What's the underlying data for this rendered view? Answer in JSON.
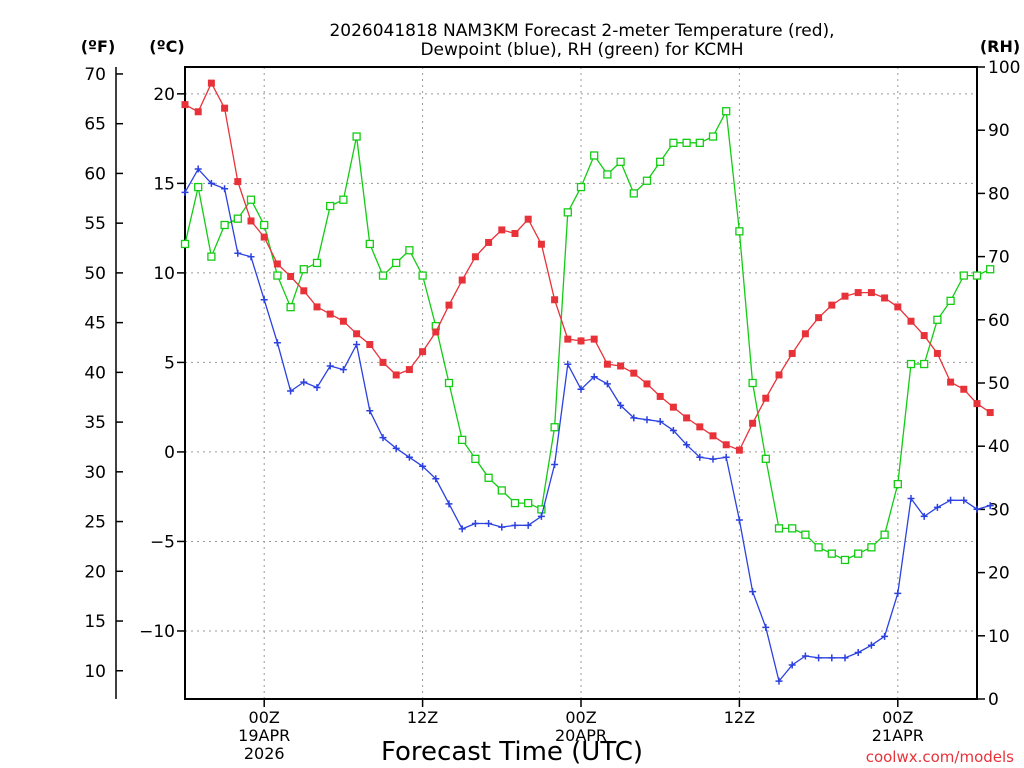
{
  "chart_data": {
    "type": "line",
    "title_line1": "2026041818 NAM3KM Forecast 2-meter Temperature (red),",
    "title_line2": "Dewpoint (blue), RH (green) for KCMH",
    "xlabel": "Forecast Time (UTC)",
    "credit": "coolwx.com/models",
    "axis_units": {
      "fahrenheit": "(ºF)",
      "celsius": "(ºC)",
      "rh": "(RH)"
    },
    "celsius_ticks": [
      "20",
      "15",
      "10",
      "5",
      "0",
      "−5",
      "−10"
    ],
    "celsius_values": [
      20,
      15,
      10,
      5,
      0,
      -5,
      -10
    ],
    "fahrenheit_ticks": [
      "70",
      "65",
      "60",
      "55",
      "50",
      "45",
      "40",
      "35",
      "30",
      "25",
      "20",
      "15",
      "10"
    ],
    "fahrenheit_values": [
      70,
      65,
      60,
      55,
      50,
      45,
      40,
      35,
      30,
      25,
      20,
      15,
      10
    ],
    "rh_ticks": [
      "100",
      "90",
      "80",
      "70",
      "60",
      "50",
      "40",
      "30",
      "20",
      "10",
      "0"
    ],
    "rh_values": [
      100,
      90,
      80,
      70,
      60,
      50,
      40,
      30,
      20,
      10,
      0
    ],
    "ylim_celsius": [
      -13.8,
      21.5
    ],
    "ylim_rh": [
      0,
      100
    ],
    "x_range_hours": [
      0,
      60
    ],
    "x_ticks": [
      {
        "hour": 6,
        "labels": [
          "00Z",
          "19APR",
          "2026"
        ]
      },
      {
        "hour": 18,
        "labels": [
          "12Z"
        ]
      },
      {
        "hour": 30,
        "labels": [
          "00Z",
          "20APR"
        ]
      },
      {
        "hour": 42,
        "labels": [
          "12Z"
        ]
      },
      {
        "hour": 54,
        "labels": [
          "00Z",
          "21APR"
        ]
      }
    ],
    "colors": {
      "temperature": "#e8323a",
      "dewpoint": "#2b41e0",
      "rh": "#13cc13"
    },
    "series": [
      {
        "name": "Temperature",
        "unit": "C",
        "axis": "celsius",
        "values": [
          19.4,
          19.0,
          20.6,
          19.2,
          15.1,
          12.9,
          12.0,
          10.5,
          9.8,
          9.0,
          8.1,
          7.7,
          7.3,
          6.6,
          6.0,
          5.0,
          4.3,
          4.6,
          5.6,
          6.7,
          8.2,
          9.6,
          10.9,
          11.7,
          12.4,
          12.2,
          13.0,
          11.6,
          8.5,
          6.3,
          6.2,
          6.3,
          4.9,
          4.8,
          4.4,
          3.8,
          3.1,
          2.5,
          1.9,
          1.4,
          0.9,
          0.4,
          0.1,
          1.6,
          3.0,
          4.3,
          5.5,
          6.6,
          7.5,
          8.2,
          8.7,
          8.9,
          8.9,
          8.6,
          8.1,
          7.3,
          6.5,
          5.5,
          3.9,
          3.5,
          2.7,
          2.2
        ]
      },
      {
        "name": "Dewpoint",
        "unit": "C",
        "axis": "celsius",
        "values": [
          14.5,
          15.8,
          15.0,
          14.7,
          11.1,
          10.9,
          8.5,
          6.1,
          3.4,
          3.9,
          3.6,
          4.8,
          4.6,
          6.0,
          2.3,
          0.8,
          0.2,
          -0.3,
          -0.8,
          -1.5,
          -2.9,
          -4.3,
          -4.0,
          -4.0,
          -4.2,
          -4.1,
          -4.1,
          -3.6,
          -0.7,
          4.9,
          3.5,
          4.2,
          3.8,
          2.6,
          1.9,
          1.8,
          1.7,
          1.2,
          0.4,
          -0.3,
          -0.4,
          -0.3,
          -3.8,
          -7.8,
          -9.8,
          -12.8,
          -11.9,
          -11.4,
          -11.5,
          -11.5,
          -11.5,
          -11.2,
          -10.8,
          -10.3,
          -7.9,
          -2.6,
          -3.6,
          -3.1,
          -2.7,
          -2.7,
          -3.2,
          -3.0
        ]
      },
      {
        "name": "RH",
        "unit": "%",
        "axis": "rh",
        "values": [
          72,
          81,
          70,
          75,
          76,
          79,
          75,
          67,
          62,
          68,
          69,
          78,
          79,
          89,
          72,
          67,
          69,
          71,
          67,
          59,
          50,
          41,
          38,
          35,
          33,
          31,
          31,
          30,
          43,
          77,
          81,
          86,
          83,
          85,
          80,
          82,
          85,
          88,
          88,
          88,
          89,
          93,
          74,
          50,
          38,
          27,
          27,
          26,
          24,
          23,
          22,
          23,
          24,
          26,
          34,
          53,
          53,
          60,
          63,
          67,
          67,
          68
        ]
      }
    ]
  }
}
